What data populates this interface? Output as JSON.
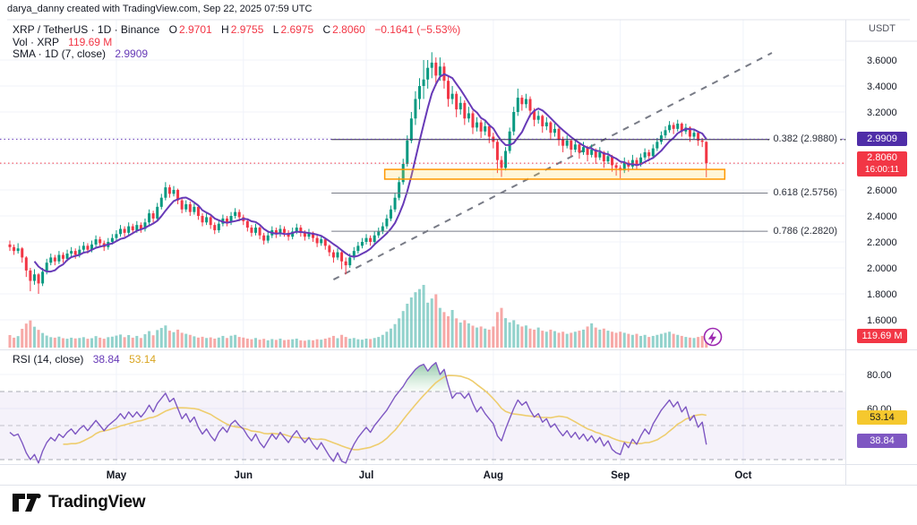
{
  "attribution": "darya_danny created with TradingView.com, Sep 22, 2025 07:59 UTC",
  "legend": {
    "title": "XRP / TetherUS · 1D · Binance",
    "o_label": "O",
    "o": "2.9701",
    "h_label": "H",
    "h": "2.9755",
    "l_label": "L",
    "l": "2.6975",
    "c_label": "C",
    "c": "2.8060",
    "change": "−0.1641 (−5.53%)",
    "vol_label": "Vol · XRP",
    "vol_value": "119.69 M",
    "sma_label": "SMA · 1D (7, close)",
    "sma_value": "2.9909"
  },
  "rsi_legend": {
    "label": "RSI (14, close)",
    "rsi_value": "38.84",
    "ma_value": "53.14"
  },
  "price_axis": {
    "currency": "USDT",
    "ticks": [
      {
        "label": "3.6000",
        "value": 3.6
      },
      {
        "label": "3.4000",
        "value": 3.4
      },
      {
        "label": "3.2000",
        "value": 3.2
      },
      {
        "label": "2.6000",
        "value": 2.6
      },
      {
        "label": "2.4000",
        "value": 2.4
      },
      {
        "label": "2.2000",
        "value": 2.2
      },
      {
        "label": "2.0000",
        "value": 2.0
      },
      {
        "label": "1.8000",
        "value": 1.8
      },
      {
        "label": "1.6000",
        "value": 1.6
      }
    ],
    "grid_values": [
      3.6,
      3.4,
      3.2,
      3.0,
      2.8,
      2.6,
      2.4,
      2.2,
      2.0,
      1.8,
      1.6
    ],
    "sma_badge": {
      "text": "2.9909"
    },
    "price_badge": {
      "text": "2.8060",
      "countdown": "16:00:11"
    },
    "volume_badge": {
      "text": "119.69 M"
    }
  },
  "rsi_axis": {
    "ticks": [
      {
        "label": "80.00",
        "value": 80
      },
      {
        "label": "60.00",
        "value": 60
      }
    ],
    "ma_badge": {
      "text": "53.14"
    },
    "rsi_badge": {
      "text": "38.84"
    }
  },
  "time_axis": {
    "months": [
      {
        "label": "May",
        "day": 26
      },
      {
        "label": "Jun",
        "day": 57
      },
      {
        "label": "Jul",
        "day": 87
      },
      {
        "label": "Aug",
        "day": 118
      },
      {
        "label": "Sep",
        "day": 149
      },
      {
        "label": "Oct",
        "day": 179
      }
    ]
  },
  "logo": {
    "text": "TradingView"
  },
  "colors": {
    "up": "#089981",
    "down": "#f23645",
    "sma": "#673ab7",
    "rsi": "#7e57c2",
    "rsi_ma": "#eecd6e",
    "band_fill": "#7e57c2",
    "grid": "#f0f3fa",
    "border": "#e0e3eb",
    "trend": "#787b86",
    "box_stroke": "#ff9800",
    "box_fill": "rgba(255,213,79,0.22)",
    "fib_dark": "#2a2e39",
    "fib_gray": "#787b86",
    "flash": "#9c27b0",
    "up_vol": "rgba(38,166,154,0.5)",
    "down_vol": "rgba(239,83,80,0.5)"
  },
  "chart_data": {
    "type": "candlestick",
    "symbol": "XRP / TetherUS",
    "interval": "1D",
    "exchange": "Binance",
    "price_range": [
      1.6,
      3.6
    ],
    "rsi_levels": [
      70,
      50,
      30
    ],
    "sma_period": 7,
    "rsi_ma_period": 14,
    "fib": {
      "from_day": 78.5,
      "to_day": 185,
      "levels": [
        {
          "ratio": "0.382",
          "label": "0.382 (2.9880)",
          "value": 2.988,
          "dotted_ext": true,
          "color": "dark"
        },
        {
          "ratio": "0.618",
          "label": "0.618 (2.5756)",
          "value": 2.5756,
          "dotted_ext": false,
          "color": "gray"
        },
        {
          "ratio": "0.786",
          "label": "0.786 (2.2820)",
          "value": 2.282,
          "dotted_ext": false,
          "color": "gray"
        }
      ]
    },
    "trendline": {
      "d1": 79,
      "p1": 1.91,
      "d2": 186,
      "p2": 3.655
    },
    "highlight_box": {
      "d1": 91.5,
      "d2": 174.5,
      "top": 2.758,
      "bottom": 2.683
    },
    "last_price_line": 2.806,
    "sma_value_line": 2.9909,
    "candles": [
      [
        2.18,
        2.21,
        2.13,
        2.16
      ],
      [
        2.16,
        2.18,
        2.1,
        2.13
      ],
      [
        2.13,
        2.19,
        2.11,
        2.15
      ],
      [
        2.15,
        2.16,
        2.04,
        2.08
      ],
      [
        2.08,
        2.09,
        1.93,
        1.98
      ],
      [
        1.98,
        2.0,
        1.82,
        1.9
      ],
      [
        1.9,
        1.99,
        1.87,
        1.95
      ],
      [
        1.95,
        1.96,
        1.8,
        1.88
      ],
      [
        1.88,
        2.0,
        1.86,
        1.97
      ],
      [
        1.97,
        2.07,
        1.95,
        2.04
      ],
      [
        2.04,
        2.11,
        2.02,
        2.08
      ],
      [
        2.08,
        2.1,
        2.02,
        2.05
      ],
      [
        2.05,
        2.13,
        2.03,
        2.1
      ],
      [
        2.1,
        2.12,
        2.04,
        2.07
      ],
      [
        2.07,
        2.14,
        2.05,
        2.11
      ],
      [
        2.11,
        2.16,
        2.08,
        2.13
      ],
      [
        2.13,
        2.15,
        2.07,
        2.1
      ],
      [
        2.1,
        2.17,
        2.08,
        2.14
      ],
      [
        2.14,
        2.2,
        2.12,
        2.17
      ],
      [
        2.17,
        2.19,
        2.11,
        2.14
      ],
      [
        2.14,
        2.21,
        2.12,
        2.18
      ],
      [
        2.18,
        2.25,
        2.16,
        2.22
      ],
      [
        2.22,
        2.24,
        2.16,
        2.19
      ],
      [
        2.19,
        2.21,
        2.13,
        2.16
      ],
      [
        2.16,
        2.23,
        2.14,
        2.2
      ],
      [
        2.2,
        2.26,
        2.18,
        2.23
      ],
      [
        2.23,
        2.29,
        2.21,
        2.26
      ],
      [
        2.26,
        2.33,
        2.24,
        2.3
      ],
      [
        2.3,
        2.32,
        2.24,
        2.27
      ],
      [
        2.27,
        2.35,
        2.25,
        2.32
      ],
      [
        2.32,
        2.34,
        2.26,
        2.29
      ],
      [
        2.29,
        2.36,
        2.27,
        2.33
      ],
      [
        2.33,
        2.35,
        2.27,
        2.3
      ],
      [
        2.3,
        2.38,
        2.28,
        2.35
      ],
      [
        2.35,
        2.45,
        2.33,
        2.42
      ],
      [
        2.42,
        2.44,
        2.35,
        2.38
      ],
      [
        2.38,
        2.5,
        2.36,
        2.47
      ],
      [
        2.47,
        2.57,
        2.45,
        2.54
      ],
      [
        2.54,
        2.66,
        2.52,
        2.62
      ],
      [
        2.62,
        2.64,
        2.54,
        2.57
      ],
      [
        2.57,
        2.63,
        2.55,
        2.6
      ],
      [
        2.6,
        2.61,
        2.49,
        2.52
      ],
      [
        2.52,
        2.54,
        2.42,
        2.45
      ],
      [
        2.45,
        2.52,
        2.43,
        2.49
      ],
      [
        2.49,
        2.51,
        2.4,
        2.43
      ],
      [
        2.43,
        2.5,
        2.41,
        2.47
      ],
      [
        2.47,
        2.48,
        2.37,
        2.4
      ],
      [
        2.4,
        2.42,
        2.32,
        2.35
      ],
      [
        2.35,
        2.42,
        2.33,
        2.39
      ],
      [
        2.39,
        2.4,
        2.3,
        2.33
      ],
      [
        2.33,
        2.35,
        2.26,
        2.29
      ],
      [
        2.29,
        2.37,
        2.27,
        2.34
      ],
      [
        2.34,
        2.41,
        2.32,
        2.38
      ],
      [
        2.38,
        2.4,
        2.32,
        2.35
      ],
      [
        2.35,
        2.43,
        2.33,
        2.4
      ],
      [
        2.4,
        2.46,
        2.38,
        2.43
      ],
      [
        2.43,
        2.45,
        2.36,
        2.39
      ],
      [
        2.39,
        2.41,
        2.33,
        2.36
      ],
      [
        2.36,
        2.38,
        2.28,
        2.31
      ],
      [
        2.31,
        2.33,
        2.24,
        2.27
      ],
      [
        2.27,
        2.34,
        2.25,
        2.31
      ],
      [
        2.31,
        2.32,
        2.22,
        2.25
      ],
      [
        2.25,
        2.27,
        2.18,
        2.21
      ],
      [
        2.21,
        2.28,
        2.19,
        2.25
      ],
      [
        2.25,
        2.32,
        2.23,
        2.29
      ],
      [
        2.29,
        2.31,
        2.23,
        2.26
      ],
      [
        2.26,
        2.33,
        2.24,
        2.3
      ],
      [
        2.3,
        2.32,
        2.24,
        2.27
      ],
      [
        2.27,
        2.29,
        2.21,
        2.24
      ],
      [
        2.24,
        2.31,
        2.22,
        2.28
      ],
      [
        2.28,
        2.34,
        2.26,
        2.31
      ],
      [
        2.31,
        2.33,
        2.24,
        2.27
      ],
      [
        2.27,
        2.29,
        2.21,
        2.24
      ],
      [
        2.24,
        2.3,
        2.22,
        2.27
      ],
      [
        2.27,
        2.28,
        2.2,
        2.23
      ],
      [
        2.23,
        2.25,
        2.16,
        2.19
      ],
      [
        2.19,
        2.25,
        2.17,
        2.22
      ],
      [
        2.22,
        2.23,
        2.14,
        2.17
      ],
      [
        2.17,
        2.18,
        2.09,
        2.12
      ],
      [
        2.12,
        2.14,
        2.04,
        2.08
      ],
      [
        2.08,
        2.15,
        2.06,
        2.12
      ],
      [
        2.12,
        2.13,
        1.99,
        2.05
      ],
      [
        2.05,
        2.08,
        1.95,
        2.02
      ],
      [
        2.02,
        2.11,
        2.0,
        2.08
      ],
      [
        2.08,
        2.16,
        2.06,
        2.13
      ],
      [
        2.13,
        2.2,
        2.11,
        2.17
      ],
      [
        2.17,
        2.23,
        2.15,
        2.2
      ],
      [
        2.2,
        2.26,
        2.18,
        2.23
      ],
      [
        2.23,
        2.25,
        2.17,
        2.2
      ],
      [
        2.2,
        2.28,
        2.18,
        2.25
      ],
      [
        2.25,
        2.31,
        2.23,
        2.28
      ],
      [
        2.28,
        2.35,
        2.26,
        2.32
      ],
      [
        2.32,
        2.41,
        2.3,
        2.38
      ],
      [
        2.38,
        2.48,
        2.36,
        2.45
      ],
      [
        2.45,
        2.58,
        2.43,
        2.54
      ],
      [
        2.54,
        2.7,
        2.52,
        2.66
      ],
      [
        2.66,
        2.84,
        2.64,
        2.8
      ],
      [
        2.8,
        3.02,
        2.78,
        2.98
      ],
      [
        2.98,
        3.2,
        2.96,
        3.15
      ],
      [
        3.15,
        3.36,
        3.1,
        3.3
      ],
      [
        3.3,
        3.46,
        3.22,
        3.4
      ],
      [
        3.4,
        3.6,
        3.3,
        3.45
      ],
      [
        3.45,
        3.6,
        3.38,
        3.54
      ],
      [
        3.54,
        3.66,
        3.46,
        3.58
      ],
      [
        3.58,
        3.62,
        3.4,
        3.48
      ],
      [
        3.48,
        3.62,
        3.44,
        3.55
      ],
      [
        3.55,
        3.58,
        3.38,
        3.44
      ],
      [
        3.44,
        3.48,
        3.24,
        3.3
      ],
      [
        3.3,
        3.4,
        3.26,
        3.34
      ],
      [
        3.34,
        3.36,
        3.16,
        3.22
      ],
      [
        3.22,
        3.32,
        3.18,
        3.27
      ],
      [
        3.27,
        3.29,
        3.1,
        3.15
      ],
      [
        3.15,
        3.24,
        3.12,
        3.19
      ],
      [
        3.19,
        3.21,
        3.03,
        3.08
      ],
      [
        3.08,
        3.16,
        3.05,
        3.12
      ],
      [
        3.12,
        3.14,
        3.0,
        3.05
      ],
      [
        3.05,
        3.13,
        3.02,
        3.09
      ],
      [
        3.09,
        3.11,
        2.96,
        3.01
      ],
      [
        3.01,
        3.04,
        2.92,
        2.97
      ],
      [
        2.97,
        2.99,
        2.73,
        2.83
      ],
      [
        2.83,
        2.86,
        2.7,
        2.77
      ],
      [
        2.77,
        2.93,
        2.75,
        2.9
      ],
      [
        2.9,
        3.08,
        2.88,
        3.05
      ],
      [
        3.05,
        3.24,
        3.02,
        3.2
      ],
      [
        3.2,
        3.38,
        3.17,
        3.31
      ],
      [
        3.31,
        3.33,
        3.21,
        3.26
      ],
      [
        3.26,
        3.34,
        3.23,
        3.3
      ],
      [
        3.3,
        3.32,
        3.16,
        3.21
      ],
      [
        3.21,
        3.23,
        3.09,
        3.14
      ],
      [
        3.14,
        3.21,
        3.11,
        3.17
      ],
      [
        3.17,
        3.18,
        3.04,
        3.09
      ],
      [
        3.09,
        3.16,
        3.06,
        3.12
      ],
      [
        3.12,
        3.13,
        2.99,
        3.04
      ],
      [
        3.04,
        3.11,
        3.01,
        3.07
      ],
      [
        3.07,
        3.08,
        2.94,
        2.99
      ],
      [
        2.99,
        3.01,
        2.89,
        2.94
      ],
      [
        2.94,
        3.02,
        2.92,
        2.98
      ],
      [
        2.98,
        2.99,
        2.86,
        2.91
      ],
      [
        2.91,
        2.99,
        2.89,
        2.95
      ],
      [
        2.95,
        2.96,
        2.84,
        2.89
      ],
      [
        2.89,
        2.97,
        2.87,
        2.93
      ],
      [
        2.93,
        2.94,
        2.82,
        2.87
      ],
      [
        2.87,
        2.95,
        2.85,
        2.91
      ],
      [
        2.91,
        2.92,
        2.8,
        2.85
      ],
      [
        2.85,
        2.93,
        2.83,
        2.89
      ],
      [
        2.89,
        2.9,
        2.77,
        2.82
      ],
      [
        2.82,
        2.9,
        2.8,
        2.86
      ],
      [
        2.86,
        2.87,
        2.74,
        2.79
      ],
      [
        2.79,
        2.81,
        2.71,
        2.77
      ],
      [
        2.77,
        2.79,
        2.69,
        2.75
      ],
      [
        2.75,
        2.85,
        2.73,
        2.81
      ],
      [
        2.81,
        2.83,
        2.74,
        2.78
      ],
      [
        2.78,
        2.87,
        2.76,
        2.83
      ],
      [
        2.83,
        2.85,
        2.76,
        2.8
      ],
      [
        2.8,
        2.88,
        2.78,
        2.85
      ],
      [
        2.85,
        2.92,
        2.83,
        2.89
      ],
      [
        2.89,
        2.91,
        2.82,
        2.86
      ],
      [
        2.86,
        2.95,
        2.84,
        2.92
      ],
      [
        2.92,
        3.0,
        2.9,
        2.97
      ],
      [
        2.97,
        3.05,
        2.95,
        3.02
      ],
      [
        3.02,
        3.09,
        3.0,
        3.06
      ],
      [
        3.06,
        3.13,
        3.04,
        3.1
      ],
      [
        3.1,
        3.12,
        3.03,
        3.07
      ],
      [
        3.07,
        3.14,
        3.05,
        3.11
      ],
      [
        3.11,
        3.12,
        3.01,
        3.05
      ],
      [
        3.05,
        3.11,
        3.03,
        3.08
      ],
      [
        3.08,
        3.09,
        2.97,
        3.01
      ],
      [
        3.01,
        3.07,
        2.99,
        3.04
      ],
      [
        3.04,
        3.05,
        2.94,
        2.98
      ],
      [
        2.98,
        3.0,
        2.93,
        2.97
      ],
      [
        2.9701,
        2.9755,
        2.6975,
        2.806
      ]
    ],
    "volume_millions": [
      120,
      95,
      110,
      180,
      230,
      260,
      200,
      170,
      140,
      115,
      100,
      95,
      105,
      90,
      85,
      95,
      88,
      92,
      100,
      85,
      90,
      110,
      95,
      85,
      100,
      105,
      115,
      125,
      100,
      120,
      95,
      112,
      92,
      128,
      158,
      118,
      168,
      188,
      212,
      162,
      148,
      172,
      142,
      132,
      122,
      108,
      96,
      104,
      92,
      98,
      86,
      96,
      112,
      92,
      114,
      122,
      102,
      96,
      86,
      80,
      92,
      76,
      84,
      70,
      82,
      74,
      86,
      72,
      76,
      80,
      86,
      70,
      66,
      74,
      70,
      80,
      76,
      86,
      96,
      112,
      90,
      122,
      102,
      86,
      92,
      80,
      76,
      86,
      82,
      92,
      102,
      122,
      152,
      182,
      225,
      280,
      350,
      420,
      480,
      530,
      560,
      600,
      430,
      470,
      510,
      380,
      340,
      300,
      360,
      280,
      240,
      262,
      232,
      210,
      192,
      202,
      182,
      172,
      202,
      340,
      380,
      282,
      242,
      262,
      222,
      202,
      212,
      182,
      172,
      192,
      162,
      152,
      172,
      158,
      142,
      152,
      132,
      142,
      152,
      162,
      172,
      202,
      232,
      192,
      172,
      182,
      162,
      152,
      142,
      152,
      142,
      132,
      122,
      132,
      112,
      122,
      102,
      112,
      122,
      132,
      142,
      152,
      132,
      122,
      112,
      102,
      96,
      92,
      102,
      112,
      119.69
    ],
    "rsi": [
      46,
      44,
      45,
      40,
      34,
      30,
      33,
      28,
      35,
      40,
      43,
      41,
      45,
      43,
      46,
      48,
      45,
      48,
      50,
      47,
      50,
      53,
      50,
      47,
      50,
      52,
      54,
      57,
      54,
      58,
      55,
      58,
      55,
      58,
      62,
      58,
      63,
      66,
      69,
      64,
      66,
      60,
      54,
      57,
      52,
      55,
      49,
      45,
      48,
      44,
      41,
      46,
      49,
      46,
      51,
      53,
      50,
      48,
      44,
      41,
      45,
      40,
      37,
      41,
      45,
      42,
      46,
      43,
      40,
      44,
      47,
      43,
      40,
      43,
      39,
      36,
      40,
      36,
      32,
      29,
      34,
      29,
      28,
      34,
      39,
      43,
      46,
      49,
      46,
      50,
      53,
      56,
      59,
      63,
      67,
      70,
      73,
      77,
      80,
      83,
      85,
      86,
      82,
      85,
      87,
      80,
      83,
      74,
      66,
      69,
      69,
      66,
      69,
      63,
      58,
      61,
      57,
      54,
      51,
      44,
      41,
      48,
      54,
      60,
      65,
      62,
      64,
      59,
      55,
      57,
      52,
      54,
      49,
      51,
      47,
      44,
      47,
      43,
      46,
      42,
      45,
      41,
      44,
      40,
      43,
      38,
      41,
      36,
      34,
      33,
      40,
      37,
      42,
      39,
      44,
      48,
      45,
      51,
      55,
      59,
      62,
      65,
      61,
      64,
      58,
      61,
      53,
      56,
      49,
      52,
      38.84
    ]
  }
}
